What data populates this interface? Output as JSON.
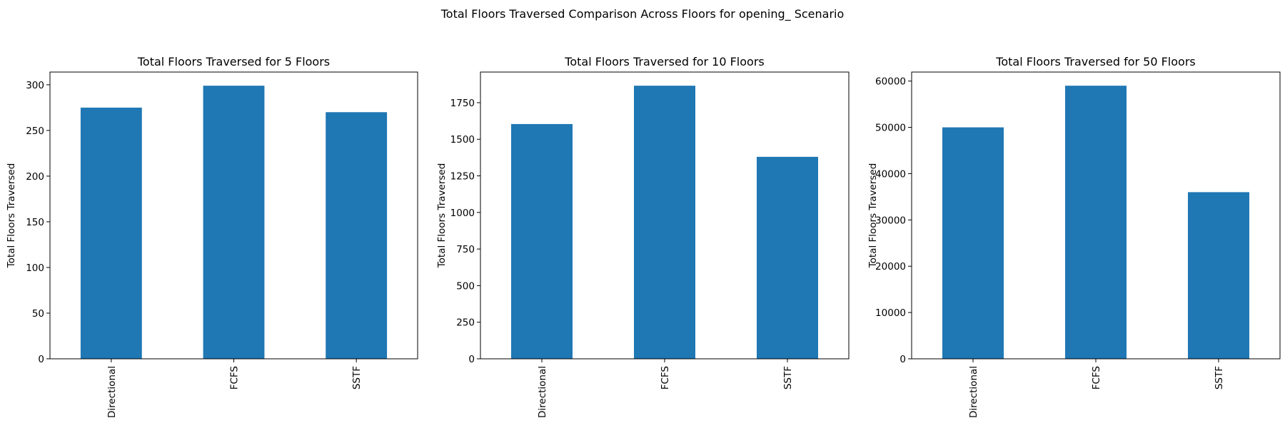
{
  "figure": {
    "suptitle": "Total Floors Traversed Comparison Across Floors for opening_ Scenario"
  },
  "chart_data": [
    {
      "type": "bar",
      "title": "Total Floors Traversed for 5 Floors",
      "xlabel": "",
      "ylabel": "Total Floors Traversed",
      "categories": [
        "Directional",
        "FCFS",
        "SSTF"
      ],
      "values": [
        275,
        299,
        270
      ],
      "ylim": [
        0,
        313.95
      ],
      "yticks": [
        0,
        50,
        100,
        150,
        200,
        250,
        300
      ],
      "ytick_labels": [
        "0",
        "50",
        "100",
        "150",
        "200",
        "250",
        "300"
      ],
      "bar_color": "#1f77b4",
      "grid": false
    },
    {
      "type": "bar",
      "title": "Total Floors Traversed for 10 Floors",
      "xlabel": "",
      "ylabel": "Total Floors Traversed",
      "categories": [
        "Directional",
        "FCFS",
        "SSTF"
      ],
      "values": [
        1604,
        1866,
        1380
      ],
      "ylim": [
        0,
        1959.3
      ],
      "yticks": [
        0,
        250,
        500,
        750,
        1000,
        1250,
        1500,
        1750
      ],
      "ytick_labels": [
        "0",
        "250",
        "500",
        "750",
        "1000",
        "1250",
        "1500",
        "1750"
      ],
      "bar_color": "#1f77b4",
      "grid": false
    },
    {
      "type": "bar",
      "title": "Total Floors Traversed for 50 Floors",
      "xlabel": "",
      "ylabel": "Total Floors Traversed",
      "categories": [
        "Directional",
        "FCFS",
        "SSTF"
      ],
      "values": [
        50000,
        59000,
        36000
      ],
      "ylim": [
        0,
        61950
      ],
      "yticks": [
        0,
        10000,
        20000,
        30000,
        40000,
        50000,
        60000
      ],
      "ytick_labels": [
        "0",
        "10000",
        "20000",
        "30000",
        "40000",
        "50000",
        "60000"
      ],
      "bar_color": "#1f77b4",
      "grid": false
    }
  ]
}
